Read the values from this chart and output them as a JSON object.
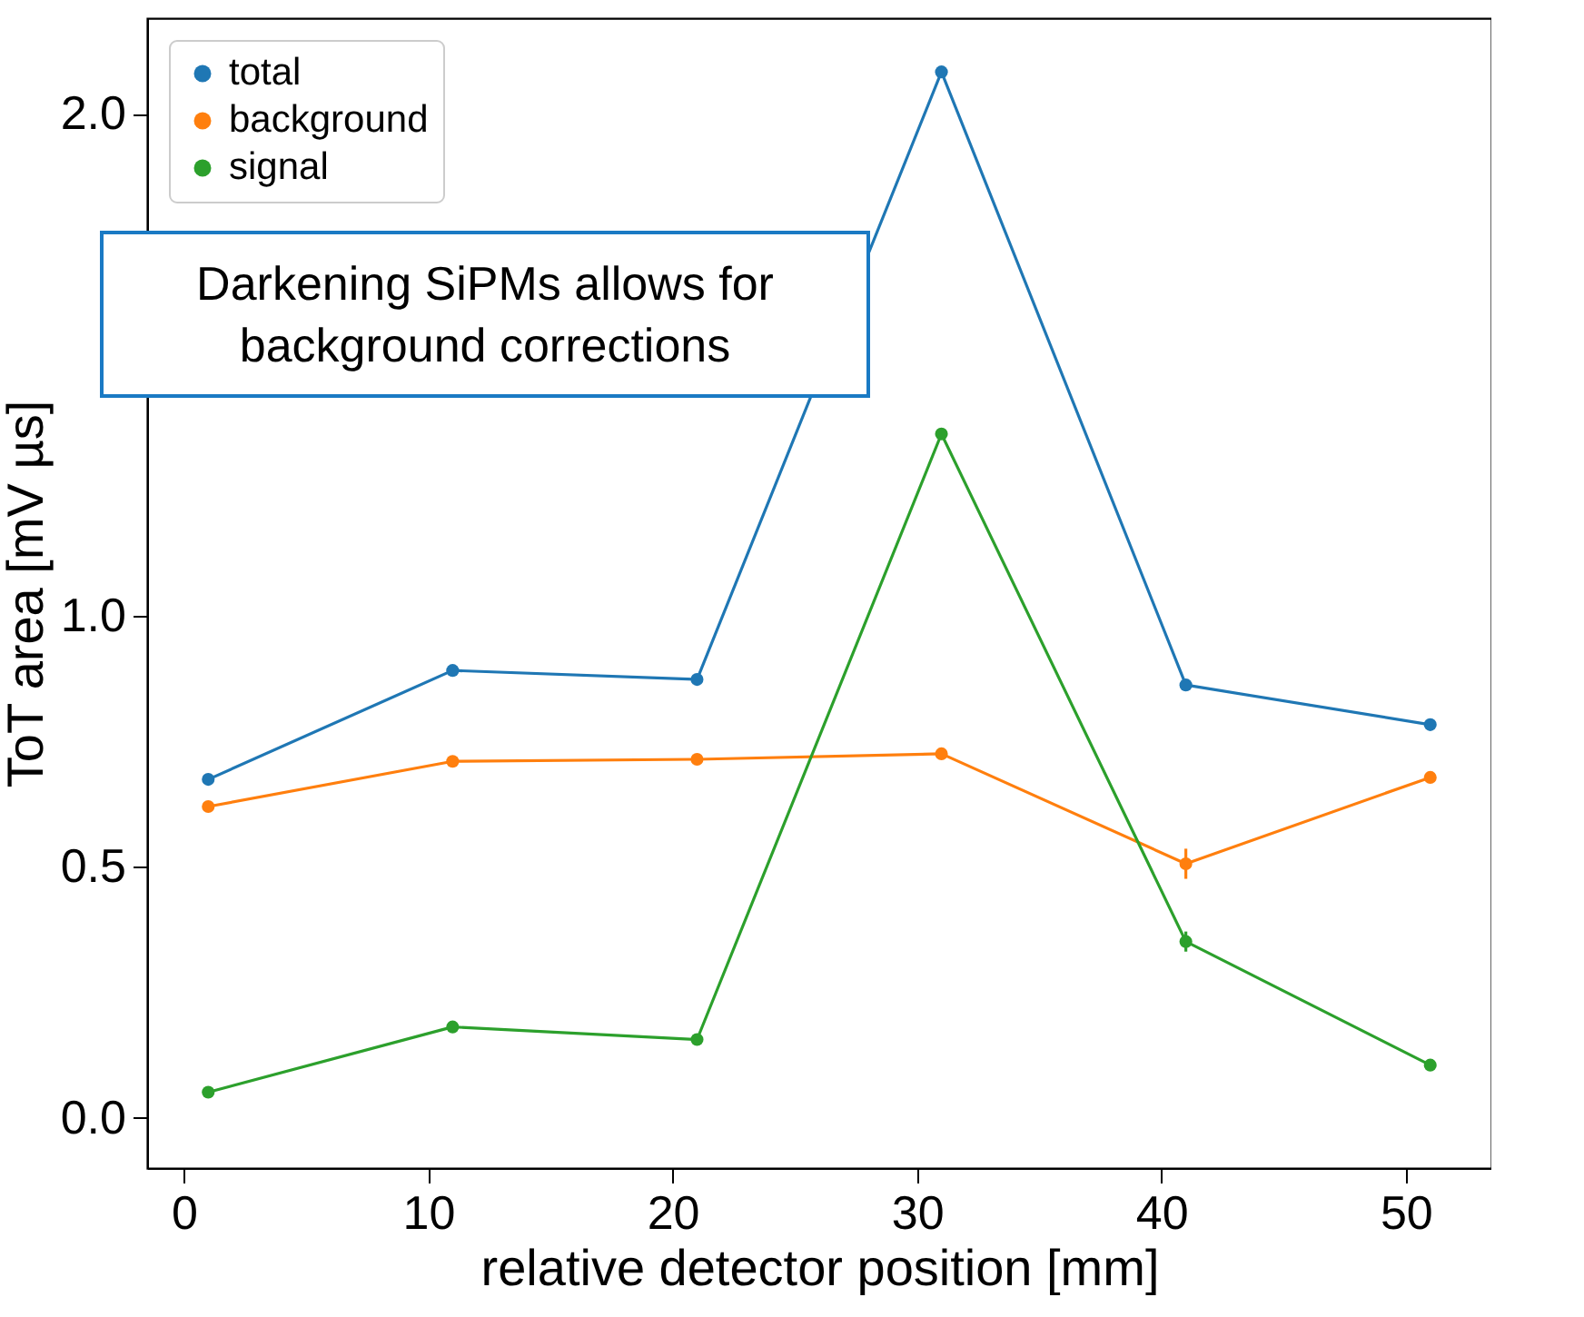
{
  "chart_data": {
    "type": "line",
    "xlabel": "relative detector position [mm]",
    "ylabel": "ToT area [mV µs]",
    "x": [
      1,
      11,
      21,
      31,
      41,
      51
    ],
    "series": [
      {
        "name": "total",
        "color": "#1f77b4",
        "values": [
          0.674,
          0.891,
          0.873,
          2.083,
          0.862,
          0.783
        ]
      },
      {
        "name": "background",
        "color": "#ff7f0e",
        "values": [
          0.62,
          0.71,
          0.714,
          0.725,
          0.506,
          0.678
        ],
        "errors": [
          null,
          null,
          null,
          null,
          0.03,
          null
        ]
      },
      {
        "name": "signal",
        "color": "#2ca02c",
        "values": [
          0.051,
          0.181,
          0.156,
          1.362,
          0.351,
          0.105
        ],
        "errors": [
          null,
          null,
          null,
          null,
          0.02,
          null
        ]
      }
    ],
    "xlim": [
      -1.5,
      53.5
    ],
    "xticks": [
      0,
      10,
      20,
      30,
      40,
      50
    ],
    "ylim": [
      -0.1,
      2.19
    ],
    "yticks": [
      {
        "value": 0,
        "label": "0.0"
      },
      {
        "value": 0.5,
        "label": "0.5"
      },
      {
        "value": 1,
        "label": "1.0"
      },
      {
        "value": 2,
        "label": "2.0"
      }
    ],
    "annotations": [
      "Darkening SiPMs allows for background corrections"
    ],
    "legend": "top left",
    "marker": "circle",
    "grid": false
  }
}
